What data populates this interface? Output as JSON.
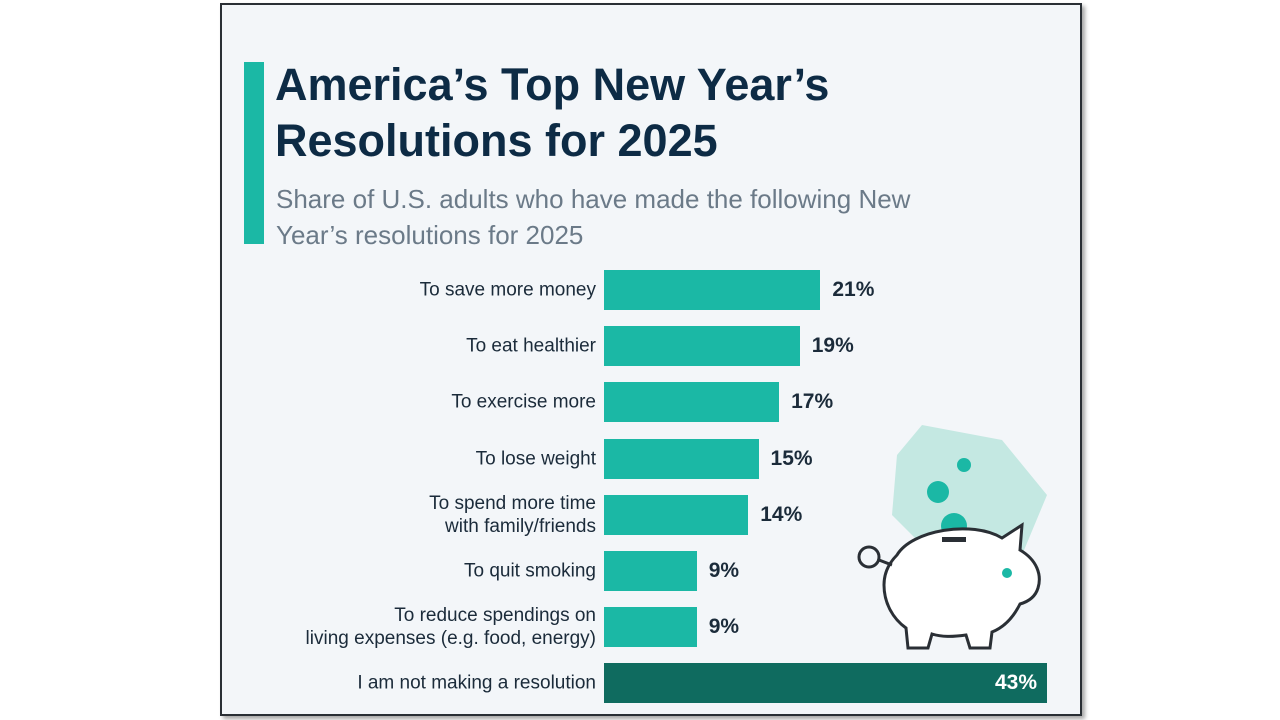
{
  "chart_data": {
    "type": "bar",
    "orientation": "horizontal",
    "title": "America’s Top New Year’s Resolutions for 2025",
    "subtitle": "Share of U.S. adults who have made the following New Year’s resolutions for 2025",
    "categories": [
      "To save more money",
      "To eat healthier",
      "To exercise more",
      "To lose weight",
      "To spend more time\nwith family/friends",
      "To quit smoking",
      "To reduce spendings on\nliving expenses (e.g. food, energy)",
      "I am not making a resolution"
    ],
    "values": [
      21,
      19,
      17,
      15,
      14,
      9,
      9,
      43
    ],
    "value_labels": [
      "21%",
      "19%",
      "17%",
      "15%",
      "14%",
      "9%",
      "9%",
      "43%"
    ],
    "colors": [
      "#1bb8a5",
      "#1bb8a5",
      "#1bb8a5",
      "#1bb8a5",
      "#1bb8a5",
      "#1bb8a5",
      "#1bb8a5",
      "#0f6b5f"
    ]
  }
}
